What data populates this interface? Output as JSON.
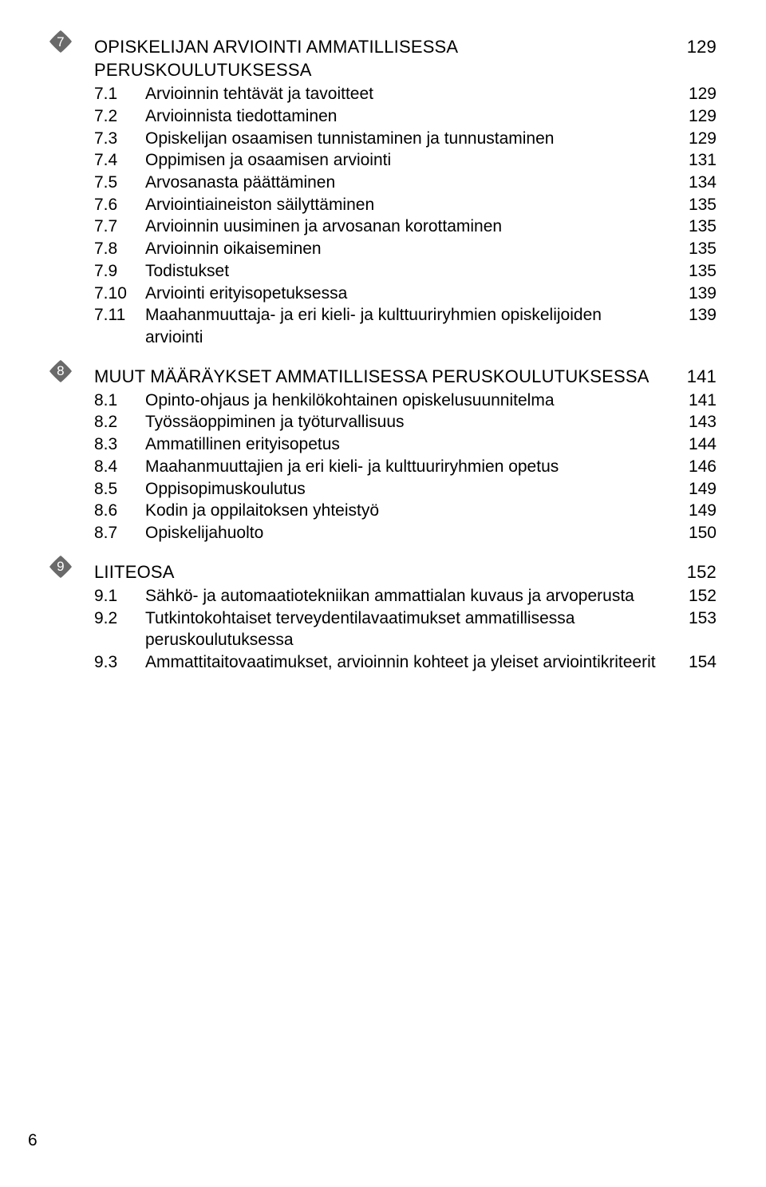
{
  "bullet_fill": "#6a6a6a",
  "page_number": "6",
  "sections": [
    {
      "bullet": "7",
      "heading": {
        "label": "OPISKELIJAN ARVIOINTI AMMATILLISESSA PERUSKOULUTUKSESSA",
        "page": "129"
      },
      "items": [
        {
          "num": "7.1",
          "label": "Arvioinnin tehtävät ja tavoitteet",
          "page": "129"
        },
        {
          "num": "7.2",
          "label": "Arvioinnista tiedottaminen",
          "page": "129"
        },
        {
          "num": "7.3",
          "label": "Opiskelijan osaamisen tunnistaminen ja tunnustaminen",
          "page": "129"
        },
        {
          "num": "7.4",
          "label": "Oppimisen ja osaamisen arviointi",
          "page": "131"
        },
        {
          "num": "7.5",
          "label": "Arvosanasta päättäminen",
          "page": "134"
        },
        {
          "num": "7.6",
          "label": "Arviointiaineiston säilyttäminen",
          "page": "135"
        },
        {
          "num": "7.7",
          "label": "Arvioinnin uusiminen ja arvosanan korottaminen",
          "page": "135"
        },
        {
          "num": "7.8",
          "label": "Arvioinnin oikaiseminen",
          "page": "135"
        },
        {
          "num": "7.9",
          "label": "Todistukset",
          "page": "135"
        },
        {
          "num": "7.10",
          "label": "Arviointi erityisopetuksessa",
          "page": "139"
        },
        {
          "num": "7.11",
          "label": "Maahanmuuttaja- ja eri kieli- ja kulttuuriryhmien opiskelijoiden arviointi",
          "page": "139"
        }
      ]
    },
    {
      "bullet": "8",
      "heading": {
        "label": "MUUT MÄÄRÄYKSET AMMATILLISESSA PERUSKOULUTUKSESSA",
        "page": "141"
      },
      "items": [
        {
          "num": "8.1",
          "label": "Opinto-ohjaus ja henkilökohtainen opiskelusuunnitelma",
          "page": "141"
        },
        {
          "num": "8.2",
          "label": "Työssäoppiminen ja työturvallisuus",
          "page": "143"
        },
        {
          "num": "8.3",
          "label": "Ammatillinen erityisopetus",
          "page": "144"
        },
        {
          "num": "8.4",
          "label": "Maahanmuuttajien ja eri kieli- ja kulttuuriryhmien opetus",
          "page": "146"
        },
        {
          "num": "8.5",
          "label": "Oppisopimuskoulutus",
          "page": "149"
        },
        {
          "num": "8.6",
          "label": "Kodin ja oppilaitoksen yhteistyö",
          "page": "149"
        },
        {
          "num": "8.7",
          "label": "Opiskelijahuolto",
          "page": "150"
        }
      ]
    },
    {
      "bullet": "9",
      "heading": {
        "label": "LIITEOSA",
        "page": "152"
      },
      "items": [
        {
          "num": "9.1",
          "label": "Sähkö- ja automaatiotekniikan ammattialan kuvaus ja arvoperusta",
          "page": "152"
        },
        {
          "num": "9.2",
          "label": "Tutkintokohtaiset terveydentilavaatimukset ammatillisessa peruskoulutuksessa",
          "page": "153"
        },
        {
          "num": "9.3",
          "label": "Ammattitaitovaatimukset, arvioinnin kohteet ja yleiset arviointikriteerit",
          "page": "154"
        }
      ]
    }
  ]
}
